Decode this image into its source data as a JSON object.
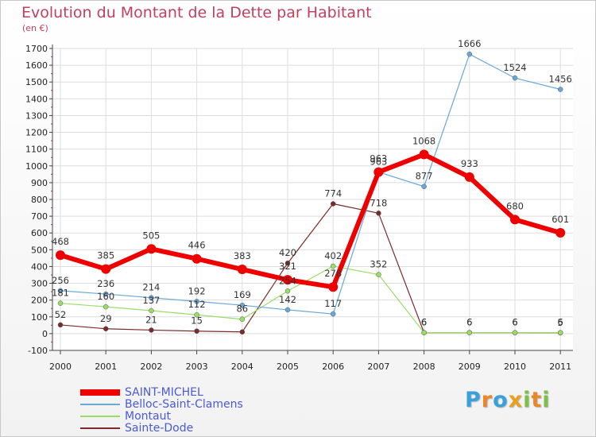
{
  "header": {
    "title": "Evolution du Montant de la Dette par Habitant",
    "subtitle": "(en €)"
  },
  "brand": {
    "letters": [
      "P",
      "r",
      "o",
      "x",
      "i",
      "t",
      "i"
    ],
    "colors": [
      "#3aa0dc",
      "#e8882a",
      "#3aa0dc",
      "#e8a020",
      "#7cc04a",
      "#e8882a",
      "#7cc04a"
    ]
  },
  "chart_data": {
    "type": "line",
    "title": "Evolution du Montant de la Dette par Habitant",
    "subtitle": "(en €)",
    "xlabel": "",
    "ylabel": "",
    "x": [
      "2000",
      "2001",
      "2002",
      "2003",
      "2004",
      "2005",
      "2006",
      "2007",
      "2008",
      "2009",
      "2010",
      "2011"
    ],
    "ylim": [
      -100,
      1700
    ],
    "yticks": [
      -100,
      0,
      100,
      200,
      300,
      400,
      500,
      600,
      700,
      800,
      900,
      1000,
      1100,
      1200,
      1300,
      1400,
      1500,
      1600,
      1700
    ],
    "grid": true,
    "legend": "bottom-left",
    "series": [
      {
        "name": "SAINT-MICHEL",
        "color": "#ee0000",
        "values": [
          468,
          385,
          505,
          446,
          383,
          321,
          278,
          963,
          1068,
          933,
          680,
          601
        ],
        "labels": [
          "468",
          "385",
          "505",
          "446",
          "383",
          "321",
          "278",
          "963",
          "1068",
          "933",
          "680",
          "601"
        ]
      },
      {
        "name": "Belloc-Saint-Clamens",
        "color": "#6aa8d8",
        "values": [
          256,
          236,
          214,
          192,
          169,
          142,
          117,
          963,
          877,
          1666,
          1524,
          1456
        ],
        "labels": [
          "256",
          "236",
          "214",
          "192",
          "169",
          "142",
          "117",
          "963",
          "877",
          "1666",
          "1524",
          "1456"
        ]
      },
      {
        "name": "Montaut",
        "color": "#99dd66",
        "values": [
          181,
          160,
          137,
          112,
          86,
          254,
          402,
          352,
          6,
          6,
          6,
          6
        ],
        "labels": [
          "181",
          "160",
          "137",
          "112",
          "86",
          "254",
          "402",
          "352",
          "6",
          "6",
          "6",
          "6"
        ]
      },
      {
        "name": "Sainte-Dode",
        "color": "#7a2a2a",
        "values": [
          52,
          29,
          21,
          15,
          10,
          420,
          774,
          718,
          6,
          6,
          6,
          5
        ],
        "labels": [
          "52",
          "29",
          "21",
          "15",
          "",
          "420",
          "774",
          "718",
          "6",
          "6",
          "6",
          "5"
        ]
      }
    ]
  }
}
